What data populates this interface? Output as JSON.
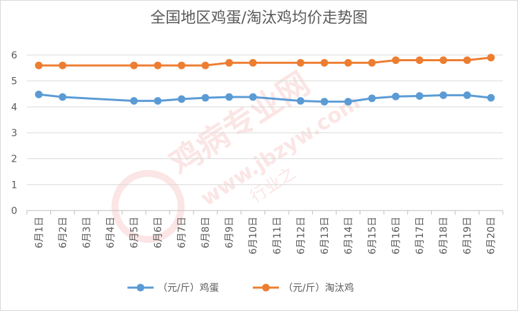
{
  "chart_data": {
    "type": "line",
    "title": "全国地区鸡蛋/淘汰鸡均价走势图",
    "xlabel": "",
    "ylabel": "",
    "categories": [
      "6月1日",
      "6月2日",
      "6月3日",
      "6月4日",
      "6月5日",
      "6月6日",
      "6月7日",
      "6月8日",
      "6月9日",
      "6月10日",
      "6月11日",
      "6月12日",
      "6月13日",
      "6月14日",
      "6月15日",
      "6月16日",
      "6月17日",
      "6月18日",
      "6月19日",
      "6月20日"
    ],
    "yticks": [
      "0",
      "1",
      "2",
      "3",
      "4",
      "5",
      "6"
    ],
    "ylim": [
      0,
      6.5
    ],
    "grid": "horizontal",
    "legend_position": "bottom",
    "series": [
      {
        "name": "（元/斤）鸡蛋",
        "color": "#5b9bd5",
        "values": [
          4.48,
          4.38,
          null,
          null,
          4.23,
          4.23,
          4.3,
          4.35,
          4.38,
          4.38,
          null,
          4.23,
          4.2,
          4.2,
          4.33,
          4.4,
          4.42,
          4.45,
          4.45,
          4.35
        ]
      },
      {
        "name": "（元/斤）淘汰鸡",
        "color": "#ed7d31",
        "values": [
          5.6,
          5.6,
          null,
          null,
          5.6,
          5.6,
          5.6,
          5.6,
          5.7,
          5.7,
          null,
          5.7,
          5.7,
          5.7,
          5.7,
          5.8,
          5.8,
          5.8,
          5.8,
          5.9
        ]
      }
    ]
  },
  "watermark": {
    "main": "鸡病专业网",
    "url": "www.jbzyw.com",
    "script": "行业之"
  }
}
